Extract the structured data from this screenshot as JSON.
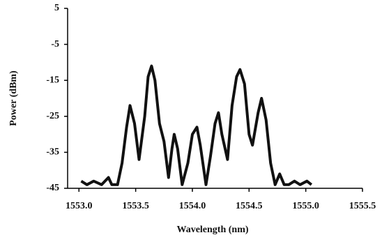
{
  "chart_data": {
    "type": "line",
    "x_label": "Wavelength (nm)",
    "y_label": "Power (dBm)",
    "xlim": [
      1552.9,
      1555.5
    ],
    "ylim": [
      -45,
      5
    ],
    "xticks": [
      {
        "value": 1553.0,
        "label": "1553.0"
      },
      1553.5,
      {
        "value": 1554.0,
        "label": "1554.0"
      },
      1554.5,
      {
        "value": 1555.0,
        "label": "1555.0"
      },
      1555.5
    ],
    "yticks": [
      5,
      -5,
      -15,
      -25,
      -35,
      -45
    ],
    "grid": false,
    "series": [
      {
        "color": "#111111",
        "x": [
          1553.02,
          1553.07,
          1553.13,
          1553.2,
          1553.26,
          1553.29,
          1553.34,
          1553.38,
          1553.42,
          1553.45,
          1553.49,
          1553.53,
          1553.58,
          1553.61,
          1553.64,
          1553.67,
          1553.71,
          1553.75,
          1553.79,
          1553.82,
          1553.84,
          1553.87,
          1553.91,
          1553.96,
          1554.0,
          1554.04,
          1554.07,
          1554.12,
          1554.16,
          1554.2,
          1554.23,
          1554.26,
          1554.31,
          1554.35,
          1554.39,
          1554.42,
          1554.46,
          1554.5,
          1554.53,
          1554.58,
          1554.61,
          1554.65,
          1554.69,
          1554.73,
          1554.77,
          1554.81,
          1554.85,
          1554.9,
          1554.95,
          1555.01,
          1555.05
        ],
        "values": [
          -43,
          -44,
          -43,
          -44,
          -42,
          -44,
          -44,
          -38,
          -28,
          -22,
          -27,
          -37,
          -25,
          -14,
          -11,
          -15,
          -27,
          -32,
          -42,
          -34,
          -30,
          -34,
          -44,
          -38,
          -30,
          -28,
          -33,
          -44,
          -36,
          -27,
          -24,
          -30,
          -37,
          -22,
          -14,
          -12,
          -16,
          -30,
          -33,
          -24,
          -20,
          -26,
          -38,
          -44,
          -41,
          -44,
          -44,
          -43,
          -44,
          -43,
          -44
        ]
      }
    ]
  }
}
